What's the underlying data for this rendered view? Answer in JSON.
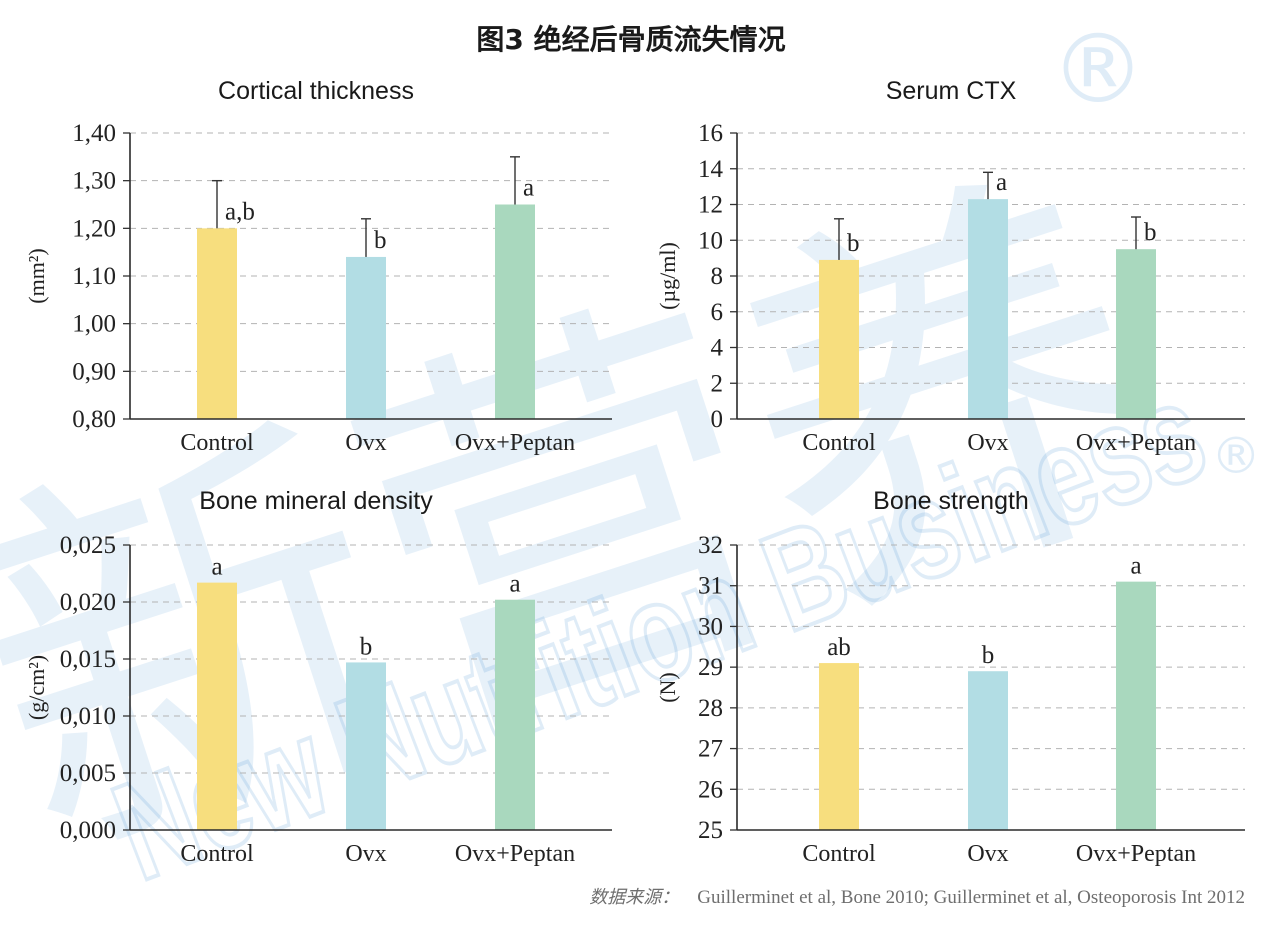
{
  "title": "图3 绝经后骨质流失情况",
  "source": {
    "label": "数据来源：",
    "text": "Guillerminet et al, Bone 2010; Guillerminet et al, Osteoporosis Int 2012"
  },
  "watermark": {
    "cn": "新营养",
    "en": "New Nutrition Business",
    "mark": "®"
  },
  "colors": {
    "bars": {
      "Control": "#F7DE7E",
      "Ovx": "#B2DDE4",
      "Ovx+Peptan": "#A9D8BE"
    },
    "watermark": "#3F8FD2"
  },
  "chart_data": [
    {
      "type": "bar",
      "title": "Cortical thickness",
      "ylabel": "(mm²)",
      "categories": [
        "Control",
        "Ovx",
        "Ovx+Peptan"
      ],
      "values": [
        1.2,
        1.14,
        1.25
      ],
      "error": [
        0.1,
        0.08,
        0.1
      ],
      "labels": [
        "a,b",
        "b",
        "a"
      ],
      "ylim": [
        0.8,
        1.4
      ],
      "yticks": [
        0.8,
        0.9,
        1.0,
        1.1,
        1.2,
        1.3,
        1.4
      ],
      "ytick_labels": [
        "0,80",
        "0,90",
        "1,00",
        "1,10",
        "1,20",
        "1,30",
        "1,40"
      ],
      "grid": true
    },
    {
      "type": "bar",
      "title": "Serum CTX",
      "ylabel": "(µg/ml)",
      "categories": [
        "Control",
        "Ovx",
        "Ovx+Peptan"
      ],
      "values": [
        8.9,
        12.3,
        9.5
      ],
      "error": [
        2.3,
        1.5,
        1.8
      ],
      "labels": [
        "b",
        "a",
        "b"
      ],
      "ylim": [
        0,
        16
      ],
      "yticks": [
        0,
        2,
        4,
        6,
        8,
        10,
        12,
        14,
        16
      ],
      "ytick_labels": [
        "0",
        "2",
        "4",
        "6",
        "8",
        "10",
        "12",
        "14",
        "16"
      ],
      "grid": true
    },
    {
      "type": "bar",
      "title": "Bone mineral density",
      "ylabel": "(g/cm²)",
      "categories": [
        "Control",
        "Ovx",
        "Ovx+Peptan"
      ],
      "values": [
        0.0217,
        0.0147,
        0.0202
      ],
      "labels": [
        "a",
        "b",
        "a"
      ],
      "ylim": [
        0,
        0.025
      ],
      "yticks": [
        0,
        0.005,
        0.01,
        0.015,
        0.02,
        0.025
      ],
      "ytick_labels": [
        "0,000",
        "0,005",
        "0,010",
        "0,015",
        "0,020",
        "0,025"
      ],
      "grid": true
    },
    {
      "type": "bar",
      "title": "Bone strength",
      "ylabel": "(N)",
      "categories": [
        "Control",
        "Ovx",
        "Ovx+Peptan"
      ],
      "values": [
        29.1,
        28.9,
        31.1
      ],
      "labels": [
        "ab",
        "b",
        "a"
      ],
      "ylim": [
        25,
        32
      ],
      "yticks": [
        25,
        26,
        27,
        28,
        29,
        30,
        31,
        32
      ],
      "ytick_labels": [
        "25",
        "26",
        "27",
        "28",
        "29",
        "30",
        "31",
        "32"
      ],
      "grid": true
    }
  ]
}
